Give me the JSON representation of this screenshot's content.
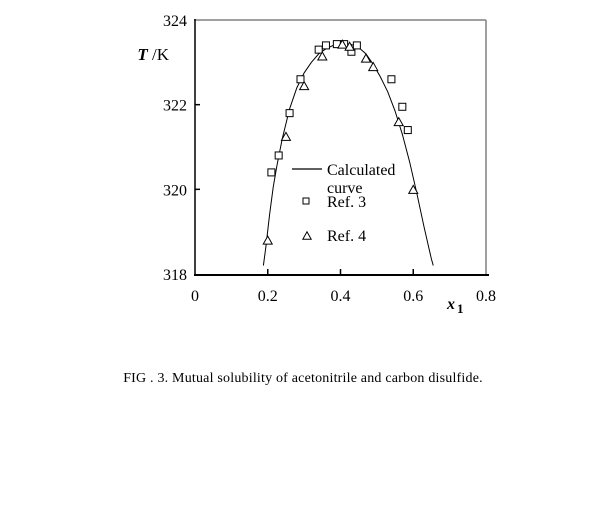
{
  "figure": {
    "caption": "FIG . 3. Mutual solubility of acetonitrile and carbon disulfide."
  },
  "chart_data": {
    "type": "scatter",
    "title": "",
    "xlabel": "x",
    "xlabel_sub": "1",
    "ylabel": "T",
    "ylabel_unit": " /K",
    "xlim": [
      0,
      0.8
    ],
    "ylim": [
      318,
      324
    ],
    "x_ticks": {
      "labeled": [
        0,
        0.2,
        0.4,
        0.6,
        0.8
      ],
      "marks": [
        0.2,
        0.4,
        0.6
      ]
    },
    "y_ticks": {
      "labeled": [
        318,
        320,
        322,
        324
      ],
      "marks": [
        320,
        322
      ]
    },
    "grid": false,
    "legend": {
      "position": "inside-center",
      "entries": [
        {
          "marker": "line",
          "lines": [
            "Calculated",
            "curve"
          ]
        },
        {
          "marker": "square",
          "lines": [
            "Ref. 3"
          ]
        },
        {
          "marker": "triangle",
          "lines": [
            "Ref. 4"
          ]
        }
      ]
    },
    "series": [
      {
        "name": "Calculated curve",
        "type": "line",
        "color": "#000000",
        "points": [
          [
            0.188,
            318.2
          ],
          [
            0.195,
            318.65
          ],
          [
            0.205,
            319.4
          ],
          [
            0.215,
            320.05
          ],
          [
            0.225,
            320.55
          ],
          [
            0.24,
            321.2
          ],
          [
            0.26,
            321.9
          ],
          [
            0.28,
            322.4
          ],
          [
            0.3,
            322.75
          ],
          [
            0.32,
            323.0
          ],
          [
            0.34,
            323.2
          ],
          [
            0.36,
            323.32
          ],
          [
            0.38,
            323.4
          ],
          [
            0.4,
            323.42
          ],
          [
            0.43,
            323.42
          ],
          [
            0.45,
            323.35
          ],
          [
            0.47,
            323.2
          ],
          [
            0.49,
            322.95
          ],
          [
            0.51,
            322.65
          ],
          [
            0.53,
            322.3
          ],
          [
            0.55,
            321.85
          ],
          [
            0.57,
            321.3
          ],
          [
            0.59,
            320.65
          ],
          [
            0.61,
            319.9
          ],
          [
            0.63,
            319.1
          ],
          [
            0.65,
            318.35
          ],
          [
            0.655,
            318.2
          ]
        ]
      },
      {
        "name": "Ref. 3",
        "type": "scatter",
        "marker": "square",
        "color": "#000000",
        "points": [
          [
            0.21,
            320.4
          ],
          [
            0.23,
            320.8
          ],
          [
            0.26,
            321.8
          ],
          [
            0.29,
            322.6
          ],
          [
            0.34,
            323.3
          ],
          [
            0.36,
            323.4
          ],
          [
            0.39,
            323.43
          ],
          [
            0.41,
            323.43
          ],
          [
            0.43,
            323.25
          ],
          [
            0.445,
            323.4
          ],
          [
            0.54,
            322.6
          ],
          [
            0.57,
            321.95
          ],
          [
            0.585,
            321.4
          ]
        ]
      },
      {
        "name": "Ref. 4",
        "type": "scatter",
        "marker": "triangle",
        "color": "#000000",
        "points": [
          [
            0.2,
            318.8
          ],
          [
            0.25,
            321.25
          ],
          [
            0.3,
            322.45
          ],
          [
            0.35,
            323.15
          ],
          [
            0.405,
            323.43
          ],
          [
            0.425,
            323.38
          ],
          [
            0.47,
            323.1
          ],
          [
            0.49,
            322.9
          ],
          [
            0.56,
            321.6
          ],
          [
            0.6,
            320.0
          ]
        ]
      }
    ],
    "colors": {
      "axis": "#000000",
      "plot_border": "#808080",
      "text": "#000000",
      "background": "#ffffff"
    }
  }
}
